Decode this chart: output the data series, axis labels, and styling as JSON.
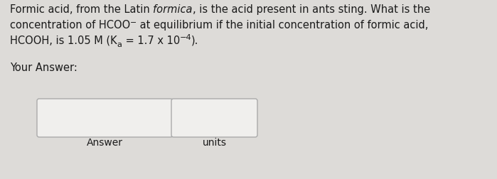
{
  "bg_color": "#dddbd8",
  "text_color": "#1a1a1a",
  "fontsize_main": 10.5,
  "fontsize_label": 10.0,
  "line1a": "Formic acid, from the Latin ",
  "line1b": "formica",
  "line1c": ", is the acid present in ants sting. What is the",
  "line2": "concentration of HCOO",
  "line2_sup": "⁾",
  "line2_rest": " at equilibrium if the initial concentration of formic acid,",
  "line3a": "HCOOH, is 1.05 M (K",
  "line3_sub": "a",
  "line3b": " = 1.7 x 10",
  "line3_super": "−4",
  "line3c": ").",
  "your_answer": "Your Answer:",
  "box1_label": "Answer",
  "box2_label": "units"
}
